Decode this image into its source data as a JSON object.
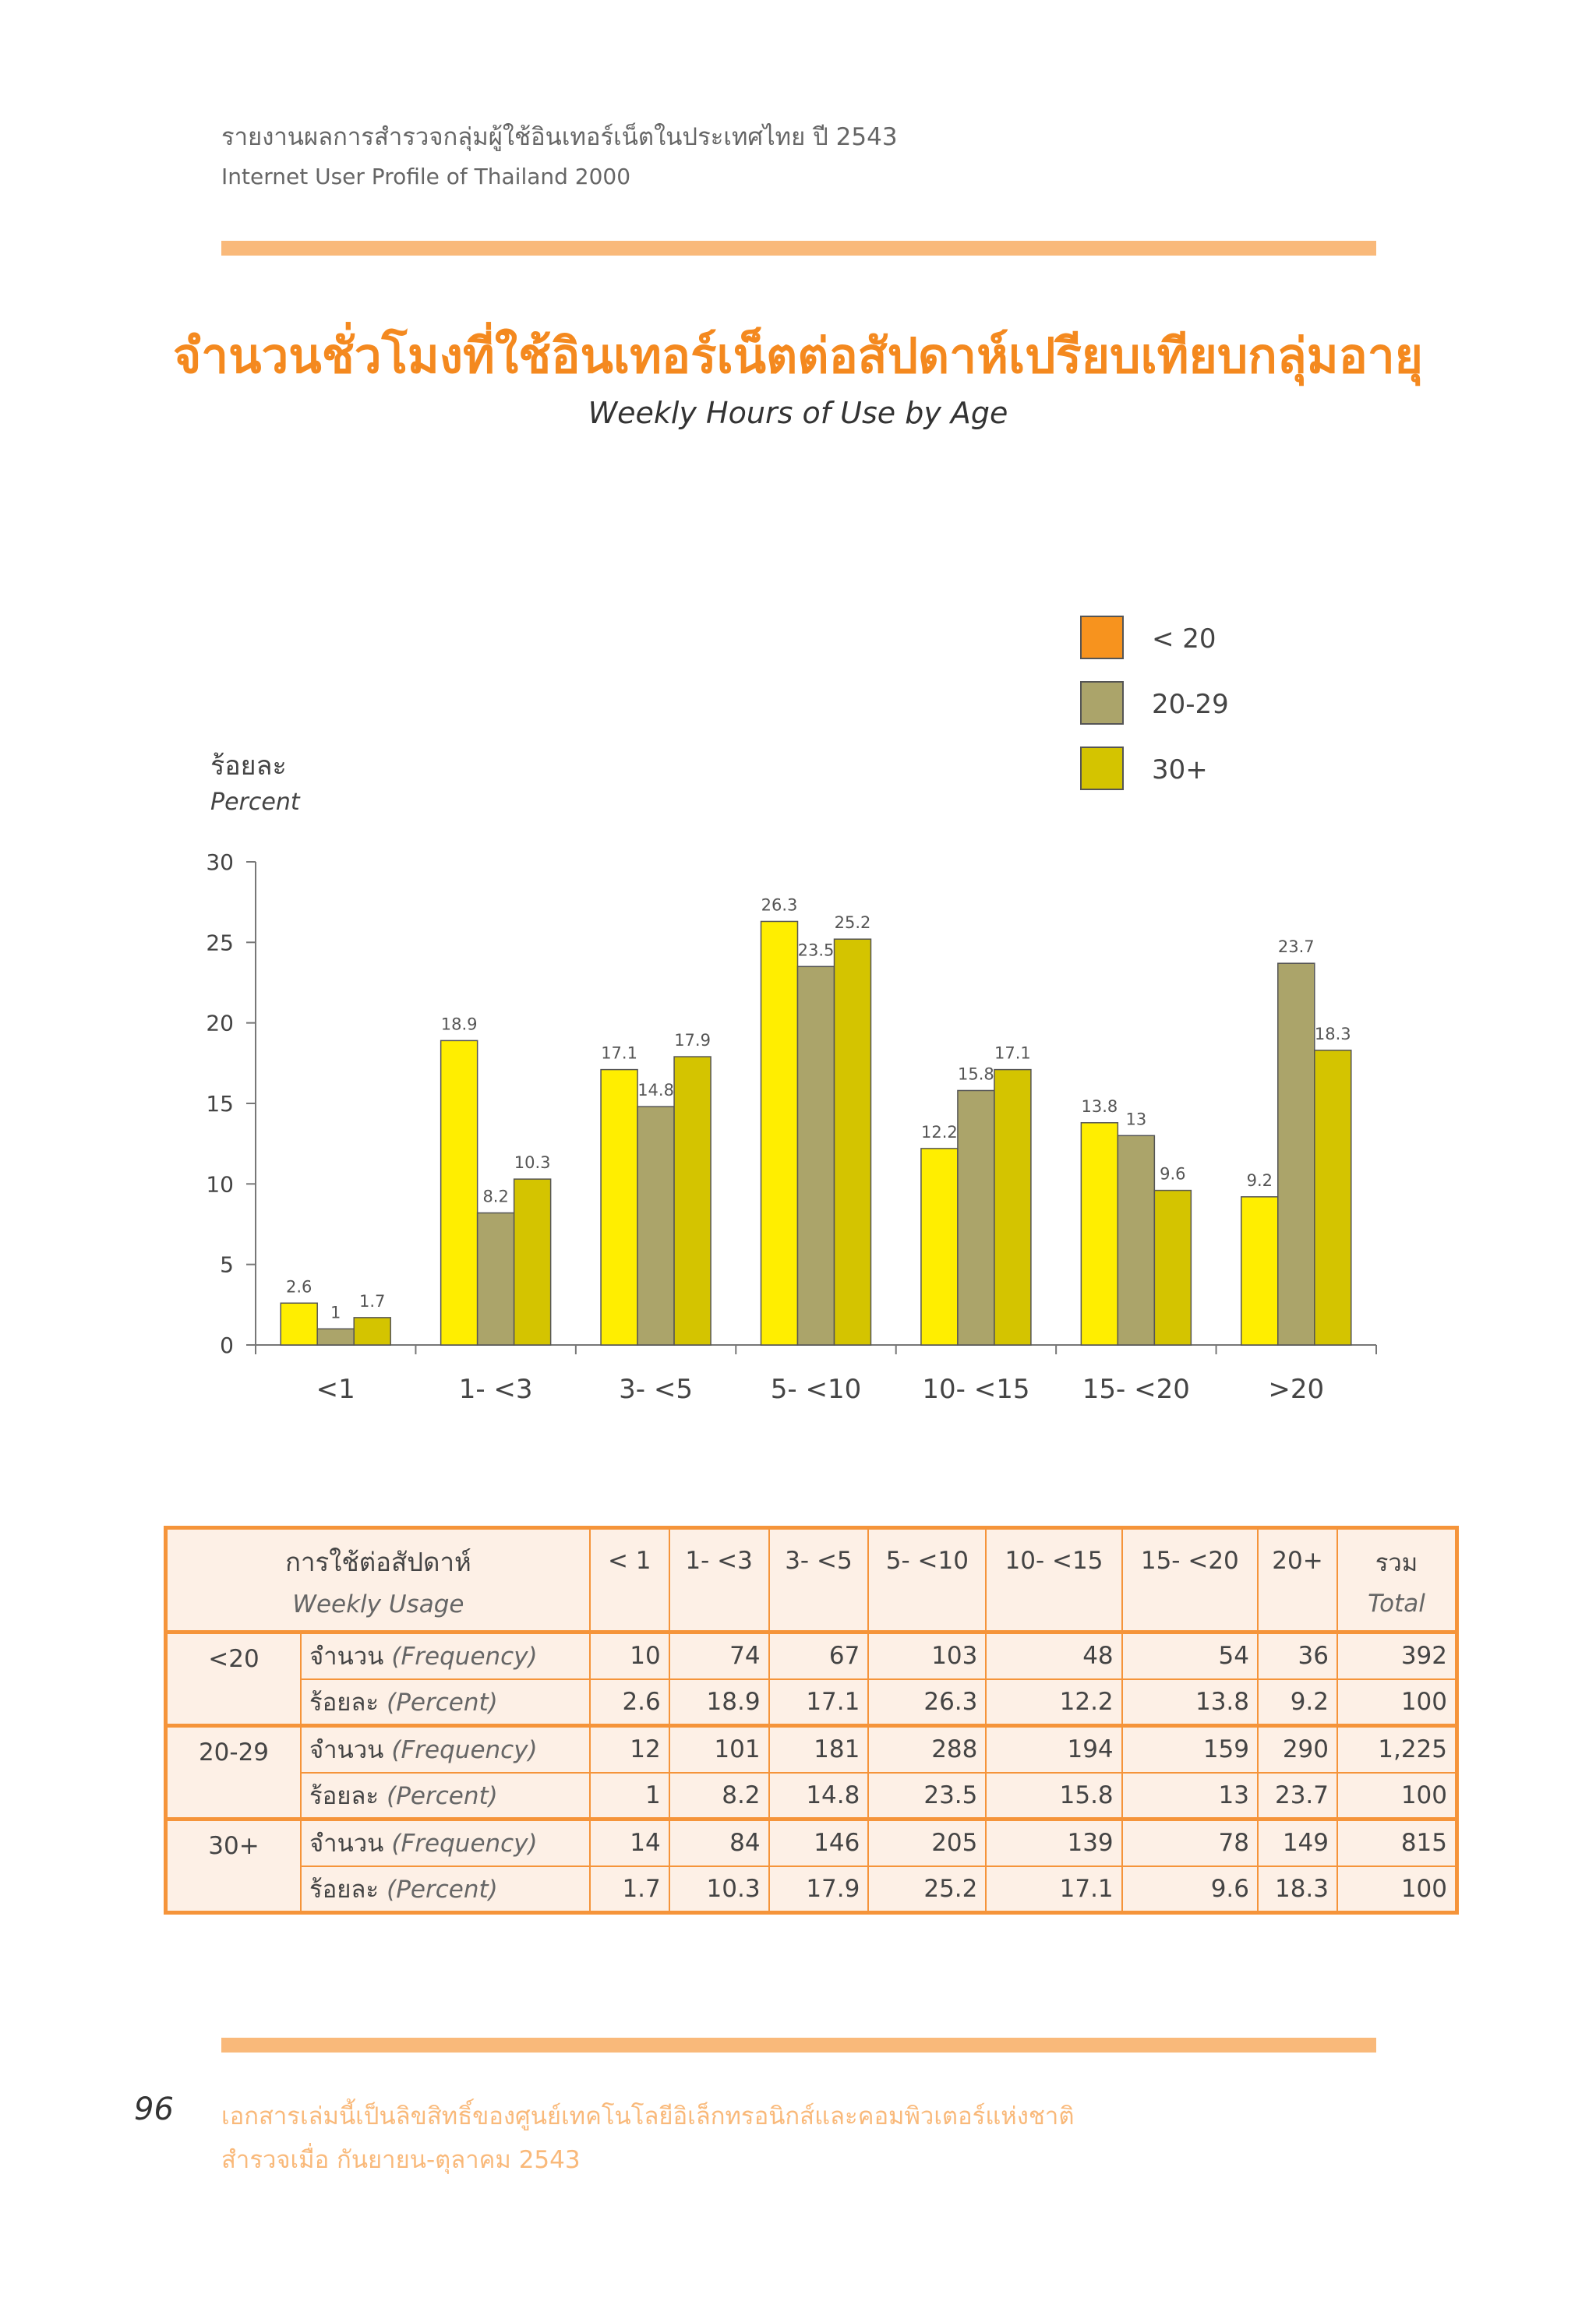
{
  "header": {
    "title_th": "รายงานผลการสำรวจกลุ่มผู้ใช้อินเทอร์เน็ตในประเทศไทย ปี 2543",
    "title_en": "Internet User Profile of Thailand 2000"
  },
  "colors": {
    "lt20": "#ffee00",
    "age20_29": "#aba46a",
    "age30p": "#d4c400",
    "accent": "#f5943a",
    "band": "#f9b97a"
  },
  "legend": {
    "items": [
      {
        "label": "< 20",
        "color": "#f7931e"
      },
      {
        "label": "20-29",
        "color": "#aba46a"
      },
      {
        "label": "30+",
        "color": "#d4c400"
      }
    ]
  },
  "y_unit": {
    "th": "ร้อยละ",
    "en": "Percent"
  },
  "chart_data": {
    "type": "bar",
    "title": "จำนวนชั่วโมงที่ใช้อินเทอร์เน็ตต่อสัปดาห์เปรียบเทียบกลุ่มอายุ",
    "subtitle": "Weekly Hours of Use by Age",
    "xlabel": "",
    "ylabel": "ร้อยละ Percent",
    "ylim": [
      0,
      30
    ],
    "yticks": [
      0,
      5,
      10,
      15,
      20,
      25,
      30
    ],
    "categories": [
      "<1",
      "1- <3",
      "3- <5",
      "5- <10",
      "10- <15",
      "15- <20",
      ">20"
    ],
    "series": [
      {
        "name": "< 20",
        "values": [
          2.6,
          18.9,
          17.1,
          26.3,
          12.2,
          13.8,
          9.2
        ]
      },
      {
        "name": "20-29",
        "values": [
          1,
          8.2,
          14.8,
          23.5,
          15.8,
          13,
          23.7
        ]
      },
      {
        "name": "30+",
        "values": [
          1.7,
          10.3,
          17.9,
          25.2,
          17.1,
          9.6,
          18.3
        ]
      }
    ],
    "grid": false,
    "legend": "top-right"
  },
  "table": {
    "header_th": "การใช้ต่อสัปดาห์",
    "header_en": "Weekly Usage",
    "columns": [
      "< 1",
      "1- <3",
      "3- <5",
      "5- <10",
      "10- <15",
      "15- <20",
      "20+"
    ],
    "total_th": "รวม",
    "total_en": "Total",
    "freq_th": "จำนวน",
    "freq_en": "(Frequency)",
    "pct_th": "ร้อยละ",
    "pct_en": "(Percent)",
    "groups": [
      {
        "name": "<20",
        "frequency": [
          "10",
          "74",
          "67",
          "103",
          "48",
          "54",
          "36",
          "392"
        ],
        "percent": [
          "2.6",
          "18.9",
          "17.1",
          "26.3",
          "12.2",
          "13.8",
          "9.2",
          "100"
        ]
      },
      {
        "name": "20-29",
        "frequency": [
          "12",
          "101",
          "181",
          "288",
          "194",
          "159",
          "290",
          "1,225"
        ],
        "percent": [
          "1",
          "8.2",
          "14.8",
          "23.5",
          "15.8",
          "13",
          "23.7",
          "100"
        ]
      },
      {
        "name": "30+",
        "frequency": [
          "14",
          "84",
          "146",
          "205",
          "139",
          "78",
          "149",
          "815"
        ],
        "percent": [
          "1.7",
          "10.3",
          "17.9",
          "25.2",
          "17.1",
          "9.6",
          "18.3",
          "100"
        ]
      }
    ]
  },
  "footer": {
    "page_number": "96",
    "line1": "เอกสารเล่มนี้เป็นลิขสิทธิ์ของศูนย์เทคโนโลยีอิเล็กทรอนิกส์และคอมพิวเตอร์แห่งชาติ",
    "line2": "สำรวจเมื่อ กันยายน-ตุลาคม 2543"
  }
}
